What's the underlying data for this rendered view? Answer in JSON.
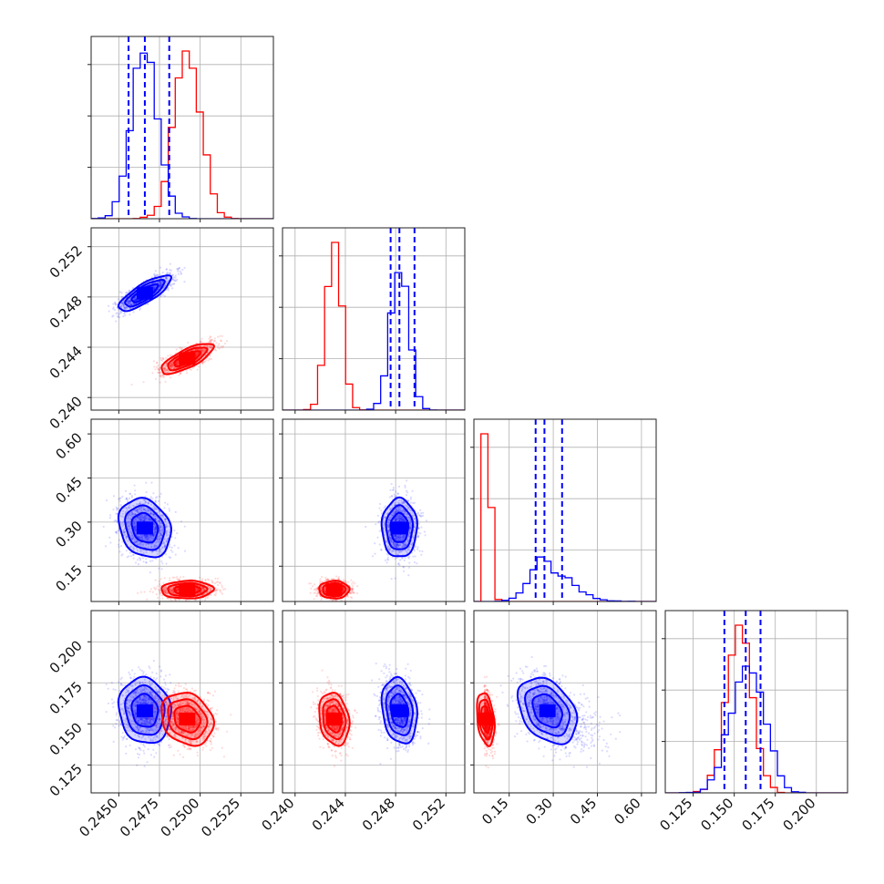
{
  "colors": {
    "red": "#ff0000",
    "blue": "#0000ff",
    "grid": "#b0b0b0"
  },
  "chart_data": {
    "type": "corner",
    "parameters": 4,
    "grid": true,
    "axes": [
      {
        "range": [
          0.2433,
          0.2545
        ],
        "ticks": [
          0.245,
          0.2475,
          0.25,
          0.2525
        ],
        "tick_labels": [
          "0.2450",
          "0.2475",
          "0.2500",
          "0.2525"
        ]
      },
      {
        "range": [
          0.239,
          0.2535
        ],
        "ticks": [
          0.24,
          0.244,
          0.248,
          0.252
        ],
        "tick_labels": [
          "0.240",
          "0.244",
          "0.248",
          "0.252"
        ]
      },
      {
        "range": [
          0.03,
          0.65
        ],
        "ticks": [
          0.15,
          0.3,
          0.45,
          0.6
        ],
        "tick_labels": [
          "0.15",
          "0.30",
          "0.45",
          "0.60"
        ]
      },
      {
        "range": [
          0.108,
          0.219
        ],
        "ticks": [
          0.125,
          0.15,
          0.175,
          0.2
        ],
        "tick_labels": [
          "0.125",
          "0.150",
          "0.175",
          "0.200"
        ]
      }
    ],
    "series": [
      {
        "color": "#0000ff",
        "mean": [
          0.2466,
          0.2483,
          0.28,
          0.158
        ],
        "sd": [
          0.0008,
          0.0007,
          0.05,
          0.01
        ],
        "quantile_lines": [
          [
            0.2456,
            0.2466,
            0.2481
          ],
          [
            0.2476,
            0.2483,
            0.2495
          ],
          [
            0.24,
            0.27,
            0.33
          ],
          [
            0.144,
            0.157,
            0.166
          ]
        ]
      },
      {
        "color": "#ff0000",
        "mean": [
          0.2492,
          0.2431,
          0.07,
          0.153
        ],
        "sd": [
          0.0008,
          0.0006,
          0.015,
          0.008
        ],
        "quantile_lines": []
      }
    ],
    "correlations": [
      {
        "pair": [
          0,
          1
        ],
        "blue": 0.8,
        "red": 0.75
      },
      {
        "pair": [
          0,
          2
        ],
        "blue": -0.2,
        "red": 0.05
      },
      {
        "pair": [
          1,
          2
        ],
        "blue": 0.0,
        "red": 0.0
      },
      {
        "pair": [
          0,
          3
        ],
        "blue": -0.1,
        "red": -0.2
      },
      {
        "pair": [
          1,
          3
        ],
        "blue": -0.2,
        "red": -0.2
      },
      {
        "pair": [
          2,
          3
        ],
        "blue": -0.35,
        "red": -0.3
      }
    ]
  }
}
